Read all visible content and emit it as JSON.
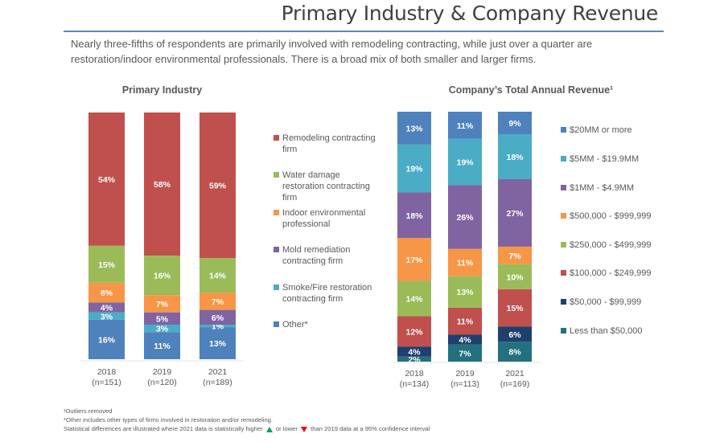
{
  "header": {
    "title": "Primary Industry & Company Revenue",
    "subtitle": "Nearly three-fifths of respondents are primarily involved with remodeling contracting, while just over a quarter are restoration/indoor environmental professionals. There is a broad mix of both smaller and larger firms."
  },
  "chart_data": [
    {
      "type": "bar",
      "stacked": true,
      "title": "Primary Industry",
      "categories": [
        "2018",
        "2019",
        "2021"
      ],
      "category_notes": [
        "(n=151)",
        "(n=120)",
        "(n=189)"
      ],
      "ylim": [
        0,
        100
      ],
      "grid": false,
      "legend_position": "right",
      "series": [
        {
          "name": "Other*",
          "color": "#4f81bd",
          "values": [
            16,
            11,
            13
          ]
        },
        {
          "name": "Smoke/Fire restoration contracting firm",
          "color": "#4bacc6",
          "values": [
            3,
            3,
            1
          ]
        },
        {
          "name": "Mold remediation contracting firm",
          "color": "#8064a2",
          "values": [
            4,
            5,
            6
          ]
        },
        {
          "name": "Indoor environmental professional",
          "color": "#f79646",
          "values": [
            8,
            7,
            7
          ]
        },
        {
          "name": "Water damage restoration contracting firm",
          "color": "#9bbb59",
          "values": [
            15,
            16,
            14
          ]
        },
        {
          "name": "Remodeling contracting firm",
          "color": "#c0504d",
          "values": [
            54,
            58,
            59
          ]
        }
      ]
    },
    {
      "type": "bar",
      "stacked": true,
      "title": "Company’s Total Annual Revenue¹",
      "categories": [
        "2018",
        "2019",
        "2021"
      ],
      "category_notes": [
        "(n=134)",
        "(n=113)",
        "(n=169)"
      ],
      "ylim": [
        0,
        100
      ],
      "grid": false,
      "legend_position": "right",
      "series": [
        {
          "name": "Less than $50,000",
          "color": "#23717f",
          "values": [
            2,
            7,
            8
          ]
        },
        {
          "name": "$50,000 - $99,999",
          "color": "#1f3f6e",
          "values": [
            4,
            4,
            6
          ]
        },
        {
          "name": "$100,000 - $249,999",
          "color": "#c0504d",
          "values": [
            12,
            11,
            15
          ]
        },
        {
          "name": "$250,000 - $499,999",
          "color": "#9bbb59",
          "values": [
            14,
            13,
            10
          ]
        },
        {
          "name": "$500,000 - $999,999",
          "color": "#f79646",
          "values": [
            17,
            11,
            7
          ]
        },
        {
          "name": "$1MM - $4.9MM",
          "color": "#8064a2",
          "values": [
            18,
            26,
            27
          ]
        },
        {
          "name": "$5MM - $19.9MM",
          "color": "#4bacc6",
          "values": [
            19,
            19,
            18
          ]
        },
        {
          "name": "$20MM or more",
          "color": "#4f81bd",
          "values": [
            13,
            11,
            9
          ]
        }
      ]
    }
  ],
  "legends": {
    "industry": [
      "Remodeling contracting firm",
      "Water damage restoration contracting firm",
      "Indoor environmental professional",
      "Mold remediation contracting firm",
      "Smoke/Fire restoration contracting firm",
      "Other*"
    ],
    "revenue": [
      "$20MM or more",
      "$5MM - $19.9MM",
      "$1MM - $4.9MM",
      "$500,000 - $999,999",
      "$250,000 - $499,999",
      "$100,000 - $249,999",
      "$50,000 - $99,999",
      "Less than $50,000"
    ]
  },
  "footnotes": {
    "line1": "¹Outliers removed",
    "line2": "*Other includes other types of firms involved in restoration and/or remodeling.",
    "line3_a": "Statistical differences are illustrated where 2021 data is statistically higher",
    "line3_b": "or lower",
    "line3_c": "than 2019 data at a 95% confidence interval"
  }
}
